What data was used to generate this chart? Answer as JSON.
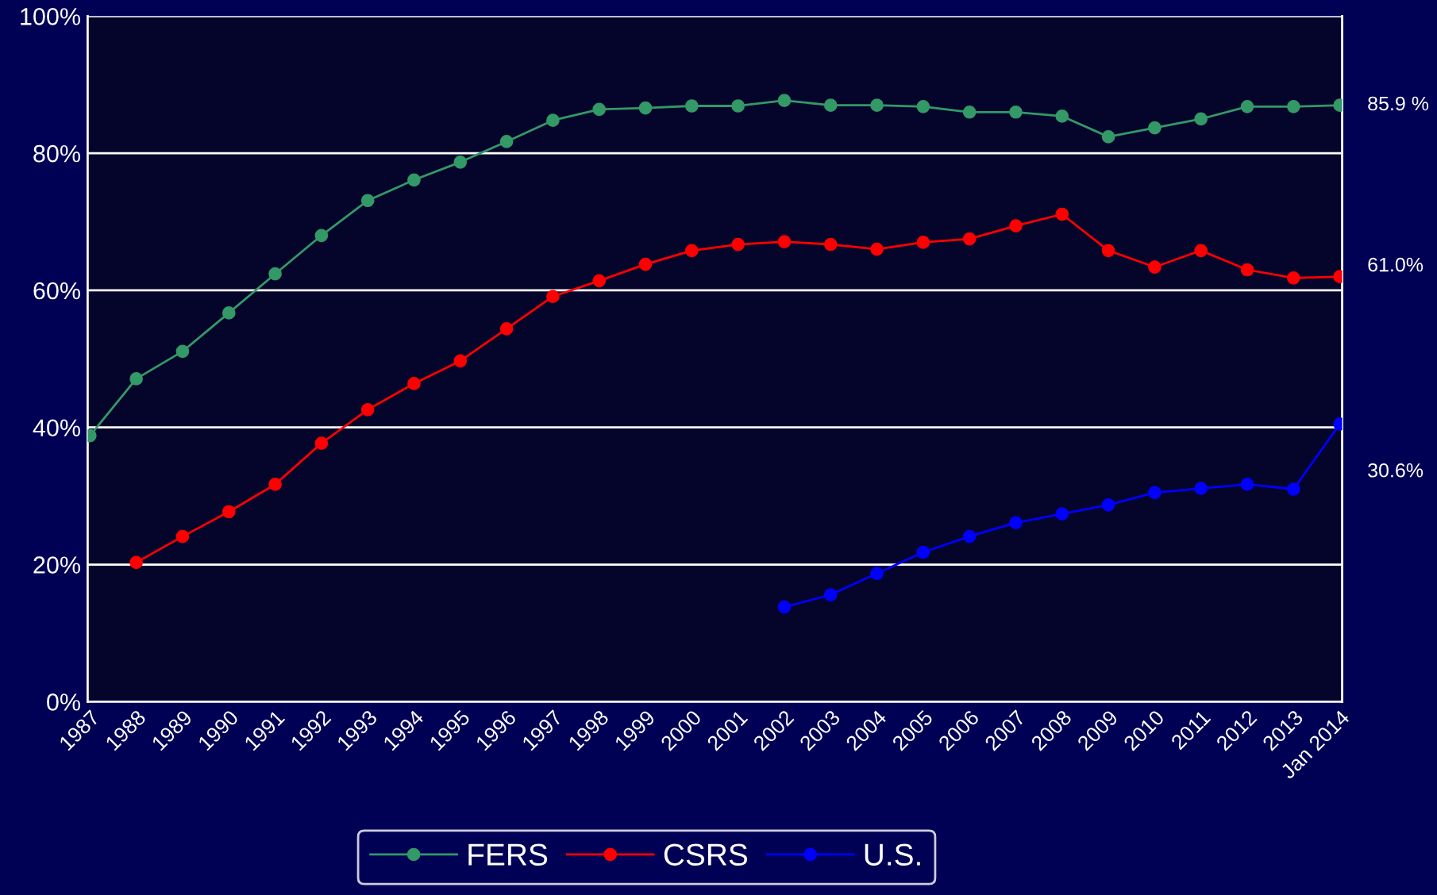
{
  "chart_data": {
    "type": "line",
    "categories": [
      "1987",
      "1988",
      "1989",
      "1990",
      "1991",
      "1992",
      "1993",
      "1994",
      "1995",
      "1996",
      "1997",
      "1998",
      "1999",
      "2000",
      "2001",
      "2002",
      "2003",
      "2004",
      "2005",
      "2006",
      "2007",
      "2008",
      "2009",
      "2010",
      "2011",
      "2012",
      "2013",
      "Jan 2014"
    ],
    "series": [
      {
        "name": "FERS",
        "color": "#339966",
        "values": [
          38.8,
          47.1,
          51.1,
          56.7,
          62.4,
          68.0,
          73.1,
          76.1,
          78.7,
          81.7,
          84.8,
          86.4,
          86.6,
          86.9,
          86.9,
          87.7,
          87.0,
          87.0,
          86.8,
          86.0,
          86.0,
          85.4,
          82.4,
          83.7,
          85.0,
          86.8,
          86.8,
          87.0
        ]
      },
      {
        "name": "CSRS",
        "color": "#ff0000",
        "values": [
          null,
          20.3,
          24.1,
          27.7,
          31.7,
          37.7,
          42.6,
          46.4,
          49.7,
          54.4,
          59.1,
          61.4,
          63.8,
          65.8,
          66.7,
          67.1,
          66.7,
          66.0,
          67.0,
          67.5,
          69.4,
          71.1,
          65.8,
          63.4,
          65.8,
          63.0,
          61.8,
          62.0
        ]
      },
      {
        "name": "U.S.",
        "color": "#0000ff",
        "values": [
          null,
          null,
          null,
          null,
          null,
          null,
          null,
          null,
          null,
          null,
          null,
          null,
          null,
          null,
          null,
          13.8,
          15.6,
          18.7,
          21.8,
          24.1,
          26.1,
          27.4,
          28.7,
          30.5,
          31.1,
          31.7,
          31.0,
          40.5
        ]
      }
    ],
    "ylim": [
      0,
      100
    ],
    "yticks": [
      {
        "value": 0,
        "label": "0%"
      },
      {
        "value": 20,
        "label": "20%"
      },
      {
        "value": 40,
        "label": "40%"
      },
      {
        "value": 60,
        "label": "60%"
      },
      {
        "value": 80,
        "label": "80%"
      },
      {
        "value": 100,
        "label": "100%"
      }
    ],
    "grid": "y",
    "legend": "bottom",
    "marker": "circle",
    "line_style": "solid",
    "annotations": [
      "85.9 %",
      "61.0%",
      "30.6%"
    ]
  }
}
